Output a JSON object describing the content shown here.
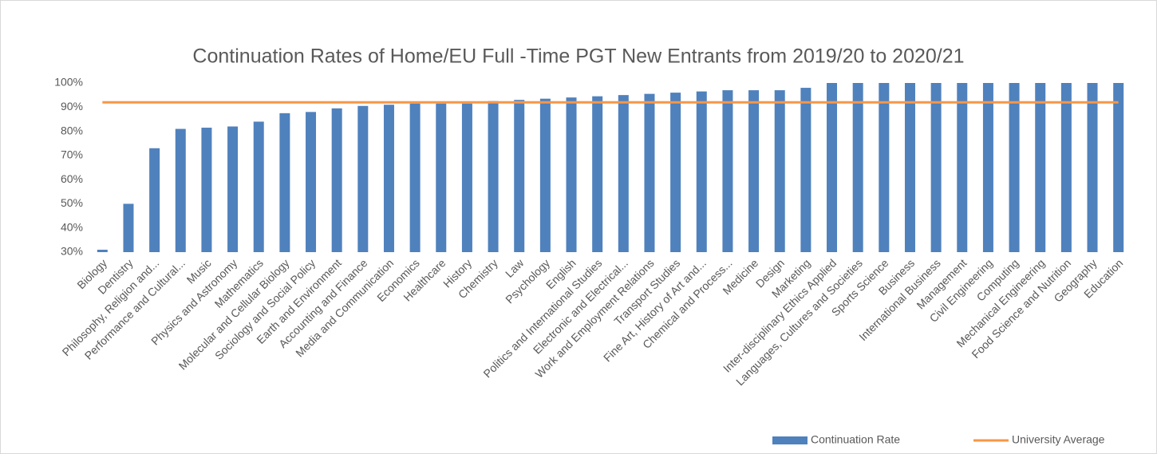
{
  "chart_data": {
    "type": "bar",
    "title": "Continuation Rates of Home/EU Full -Time PGT New Entrants from 2019/20 to 2020/21",
    "categories": [
      "Biology",
      "Dentistry",
      "Philosophy, Religion and...",
      "Performance and Cultural...",
      "Music",
      "Physics and Astronomy",
      "Mathematics",
      "Molecular and Cellular Biology",
      "Sociology and Social Policy",
      "Earth and Environment",
      "Accounting and Finance",
      "Media and Communication",
      "Economics",
      "Healthcare",
      "History",
      "Chemistry",
      "Law",
      "Psychology",
      "English",
      "Politics and International Studies",
      "Electronic and Electrical...",
      "Work and Employment Relations",
      "Transport Studies",
      "Fine Art, History of Art and...",
      "Chemical and Process...",
      "Medicine",
      "Design",
      "Marketing",
      "Inter-disciplinary Ethics Applied",
      "Languages, Cultures and Societies",
      "Sports Science",
      "Business",
      "International Business",
      "Management",
      "Civil Engineering",
      "Computing",
      "Mechanical Engineering",
      "Food Science and Nutrition",
      "Geography",
      "Education"
    ],
    "series": [
      {
        "name": "Continuation Rate",
        "color": "#4f81bd",
        "type": "bar",
        "values": [
          31,
          50,
          73,
          81,
          81.5,
          82,
          84,
          87.5,
          88,
          89.5,
          90.5,
          91,
          91.5,
          91.5,
          91.5,
          92.5,
          93,
          93.5,
          94,
          94.5,
          95,
          95.5,
          96,
          96.5,
          97,
          97,
          97,
          98,
          100,
          100,
          100,
          100,
          100,
          100,
          100,
          100,
          100,
          100,
          100,
          100
        ]
      },
      {
        "name": "University Average",
        "color": "#f79646",
        "type": "line",
        "values": [
          92,
          92,
          92,
          92,
          92,
          92,
          92,
          92,
          92,
          92,
          92,
          92,
          92,
          92,
          92,
          92,
          92,
          92,
          92,
          92,
          92,
          92,
          92,
          92,
          92,
          92,
          92,
          92,
          92,
          92,
          92,
          92,
          92,
          92,
          92,
          92,
          92,
          92,
          92,
          92
        ]
      }
    ],
    "ylim": [
      30,
      100
    ],
    "yticks": [
      {
        "value": 30,
        "label": "30%"
      },
      {
        "value": 40,
        "label": "40%"
      },
      {
        "value": 50,
        "label": "50%"
      },
      {
        "value": 60,
        "label": "60%"
      },
      {
        "value": 70,
        "label": "70%"
      },
      {
        "value": 80,
        "label": "80%"
      },
      {
        "value": 90,
        "label": "90%"
      },
      {
        "value": 100,
        "label": "100%"
      }
    ],
    "grid": false,
    "legend": "bottom-right"
  }
}
